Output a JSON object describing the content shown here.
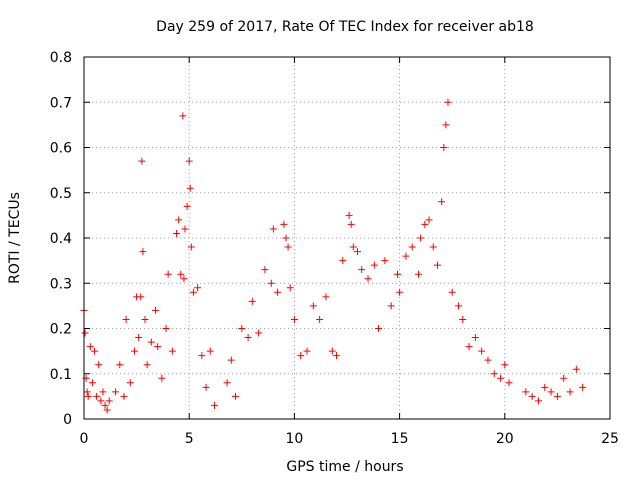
{
  "chart_data": {
    "type": "scatter",
    "title": "Day 259 of 2017, Rate Of TEC Index for receiver ab18",
    "xlabel": "GPS time / hours",
    "ylabel": "ROTI / TECUs",
    "xlim": [
      0,
      25
    ],
    "ylim": [
      0,
      0.8
    ],
    "x_ticks": [
      "0",
      "5",
      "10",
      "15",
      "20",
      "25"
    ],
    "y_ticks": [
      "0",
      "0.1",
      "0.2",
      "0.3",
      "0.4",
      "0.5",
      "0.6",
      "0.7",
      "0.8"
    ],
    "grid": true,
    "marker": "+",
    "marker_color": "#ff0000",
    "series": [
      {
        "x": [
          0.0,
          0.05,
          0.1,
          0.15,
          0.2,
          0.3,
          0.4,
          0.5,
          0.6,
          0.7,
          0.8,
          0.9,
          1.0,
          1.1,
          1.2,
          1.5,
          1.7,
          1.9,
          2.0,
          2.2,
          2.4,
          2.5,
          2.6,
          2.7,
          2.75,
          2.8,
          2.9,
          3.0,
          3.2,
          3.4,
          3.5,
          3.7,
          3.9,
          4.0,
          4.2,
          4.4,
          4.5,
          4.6,
          4.7,
          4.75,
          4.8,
          4.9,
          5.0,
          5.05,
          5.1,
          5.2,
          5.4,
          5.6,
          5.8,
          6.0,
          6.2,
          6.8,
          7.0,
          7.2,
          7.5,
          7.8,
          8.0,
          8.3,
          8.6,
          8.9,
          9.0,
          9.2,
          9.5,
          9.6,
          9.7,
          9.8,
          10.0,
          10.3,
          10.6,
          10.9,
          11.2,
          11.5,
          11.8,
          12.0,
          12.3,
          12.6,
          12.7,
          12.8,
          13.0,
          13.2,
          13.5,
          13.8,
          14.0,
          14.3,
          14.6,
          14.9,
          15.0,
          15.3,
          15.6,
          15.9,
          16.0,
          16.2,
          16.4,
          16.6,
          16.8,
          17.0,
          17.1,
          17.2,
          17.3,
          17.5,
          17.8,
          18.0,
          18.3,
          18.6,
          18.9,
          19.2,
          19.5,
          19.8,
          20.0,
          20.2,
          21.0,
          21.3,
          21.6,
          21.9,
          22.2,
          22.5,
          22.8,
          23.1,
          23.4,
          23.7
        ],
        "y": [
          0.24,
          0.19,
          0.09,
          0.06,
          0.05,
          0.16,
          0.08,
          0.15,
          0.05,
          0.12,
          0.04,
          0.06,
          0.03,
          0.02,
          0.04,
          0.06,
          0.12,
          0.05,
          0.22,
          0.08,
          0.15,
          0.27,
          0.18,
          0.27,
          0.57,
          0.37,
          0.22,
          0.12,
          0.17,
          0.24,
          0.16,
          0.09,
          0.2,
          0.32,
          0.15,
          0.41,
          0.44,
          0.32,
          0.67,
          0.31,
          0.42,
          0.47,
          0.57,
          0.51,
          0.38,
          0.28,
          0.29,
          0.14,
          0.07,
          0.15,
          0.03,
          0.08,
          0.13,
          0.05,
          0.2,
          0.18,
          0.26,
          0.19,
          0.33,
          0.3,
          0.42,
          0.28,
          0.43,
          0.4,
          0.38,
          0.29,
          0.22,
          0.14,
          0.15,
          0.25,
          0.22,
          0.27,
          0.15,
          0.14,
          0.35,
          0.45,
          0.43,
          0.38,
          0.37,
          0.33,
          0.31,
          0.34,
          0.2,
          0.35,
          0.25,
          0.32,
          0.28,
          0.36,
          0.38,
          0.32,
          0.4,
          0.43,
          0.44,
          0.38,
          0.34,
          0.48,
          0.6,
          0.65,
          0.7,
          0.28,
          0.25,
          0.22,
          0.16,
          0.18,
          0.15,
          0.13,
          0.1,
          0.09,
          0.12,
          0.08,
          0.06,
          0.05,
          0.04,
          0.07,
          0.06,
          0.05,
          0.09,
          0.06,
          0.11,
          0.07
        ]
      }
    ]
  }
}
